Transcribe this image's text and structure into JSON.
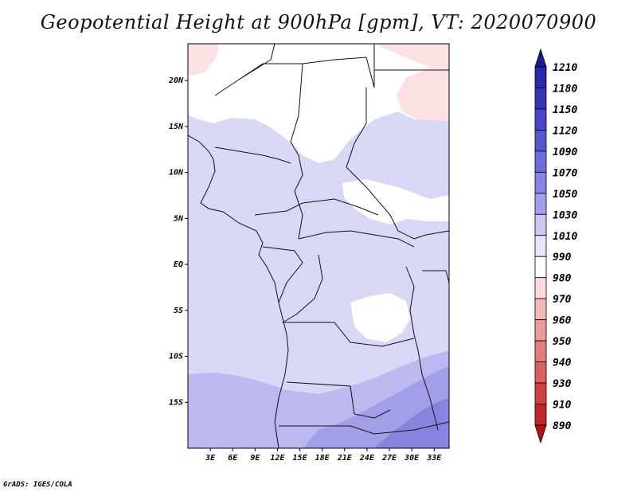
{
  "title": "Geopotential Height at 900hPa [gpm], VT: 2020070900",
  "credit": "GrADS: IGES/COLA",
  "map": {
    "lon_range": [
      0,
      35
    ],
    "lat_range": [
      -20,
      24
    ],
    "y_ticks": [
      {
        "label": "20N",
        "lat": 20
      },
      {
        "label": "15N",
        "lat": 15
      },
      {
        "label": "10N",
        "lat": 10
      },
      {
        "label": "5N",
        "lat": 5
      },
      {
        "label": "EQ",
        "lat": 0
      },
      {
        "label": "5S",
        "lat": -5
      },
      {
        "label": "10S",
        "lat": -10
      },
      {
        "label": "15S",
        "lat": -15
      }
    ],
    "x_ticks": [
      {
        "label": "3E",
        "lon": 3
      },
      {
        "label": "6E",
        "lon": 6
      },
      {
        "label": "9E",
        "lon": 9
      },
      {
        "label": "12E",
        "lon": 12
      },
      {
        "label": "15E",
        "lon": 15
      },
      {
        "label": "18E",
        "lon": 18
      },
      {
        "label": "21E",
        "lon": 21
      },
      {
        "label": "24E",
        "lon": 24
      },
      {
        "label": "27E",
        "lon": 27
      },
      {
        "label": "30E",
        "lon": 30
      },
      {
        "label": "33E",
        "lon": 33
      }
    ]
  },
  "colorbar": {
    "levels": [
      "1210",
      "1180",
      "1150",
      "1120",
      "1090",
      "1070",
      "1050",
      "1030",
      "1010",
      "990",
      "980",
      "970",
      "960",
      "950",
      "940",
      "930",
      "910",
      "890"
    ],
    "colors": [
      "#1e1a8c",
      "#2a28a8",
      "#3836b8",
      "#4846c4",
      "#5a58d0",
      "#6e6cdc",
      "#8684e4",
      "#a2a0ec",
      "#c8c8f4",
      "#e6e6fa",
      "#ffffff",
      "#fadada",
      "#f4b8b8",
      "#ec9a9a",
      "#e47c7c",
      "#dc5e5e",
      "#d24040",
      "#c42424",
      "#b01414"
    ]
  }
}
